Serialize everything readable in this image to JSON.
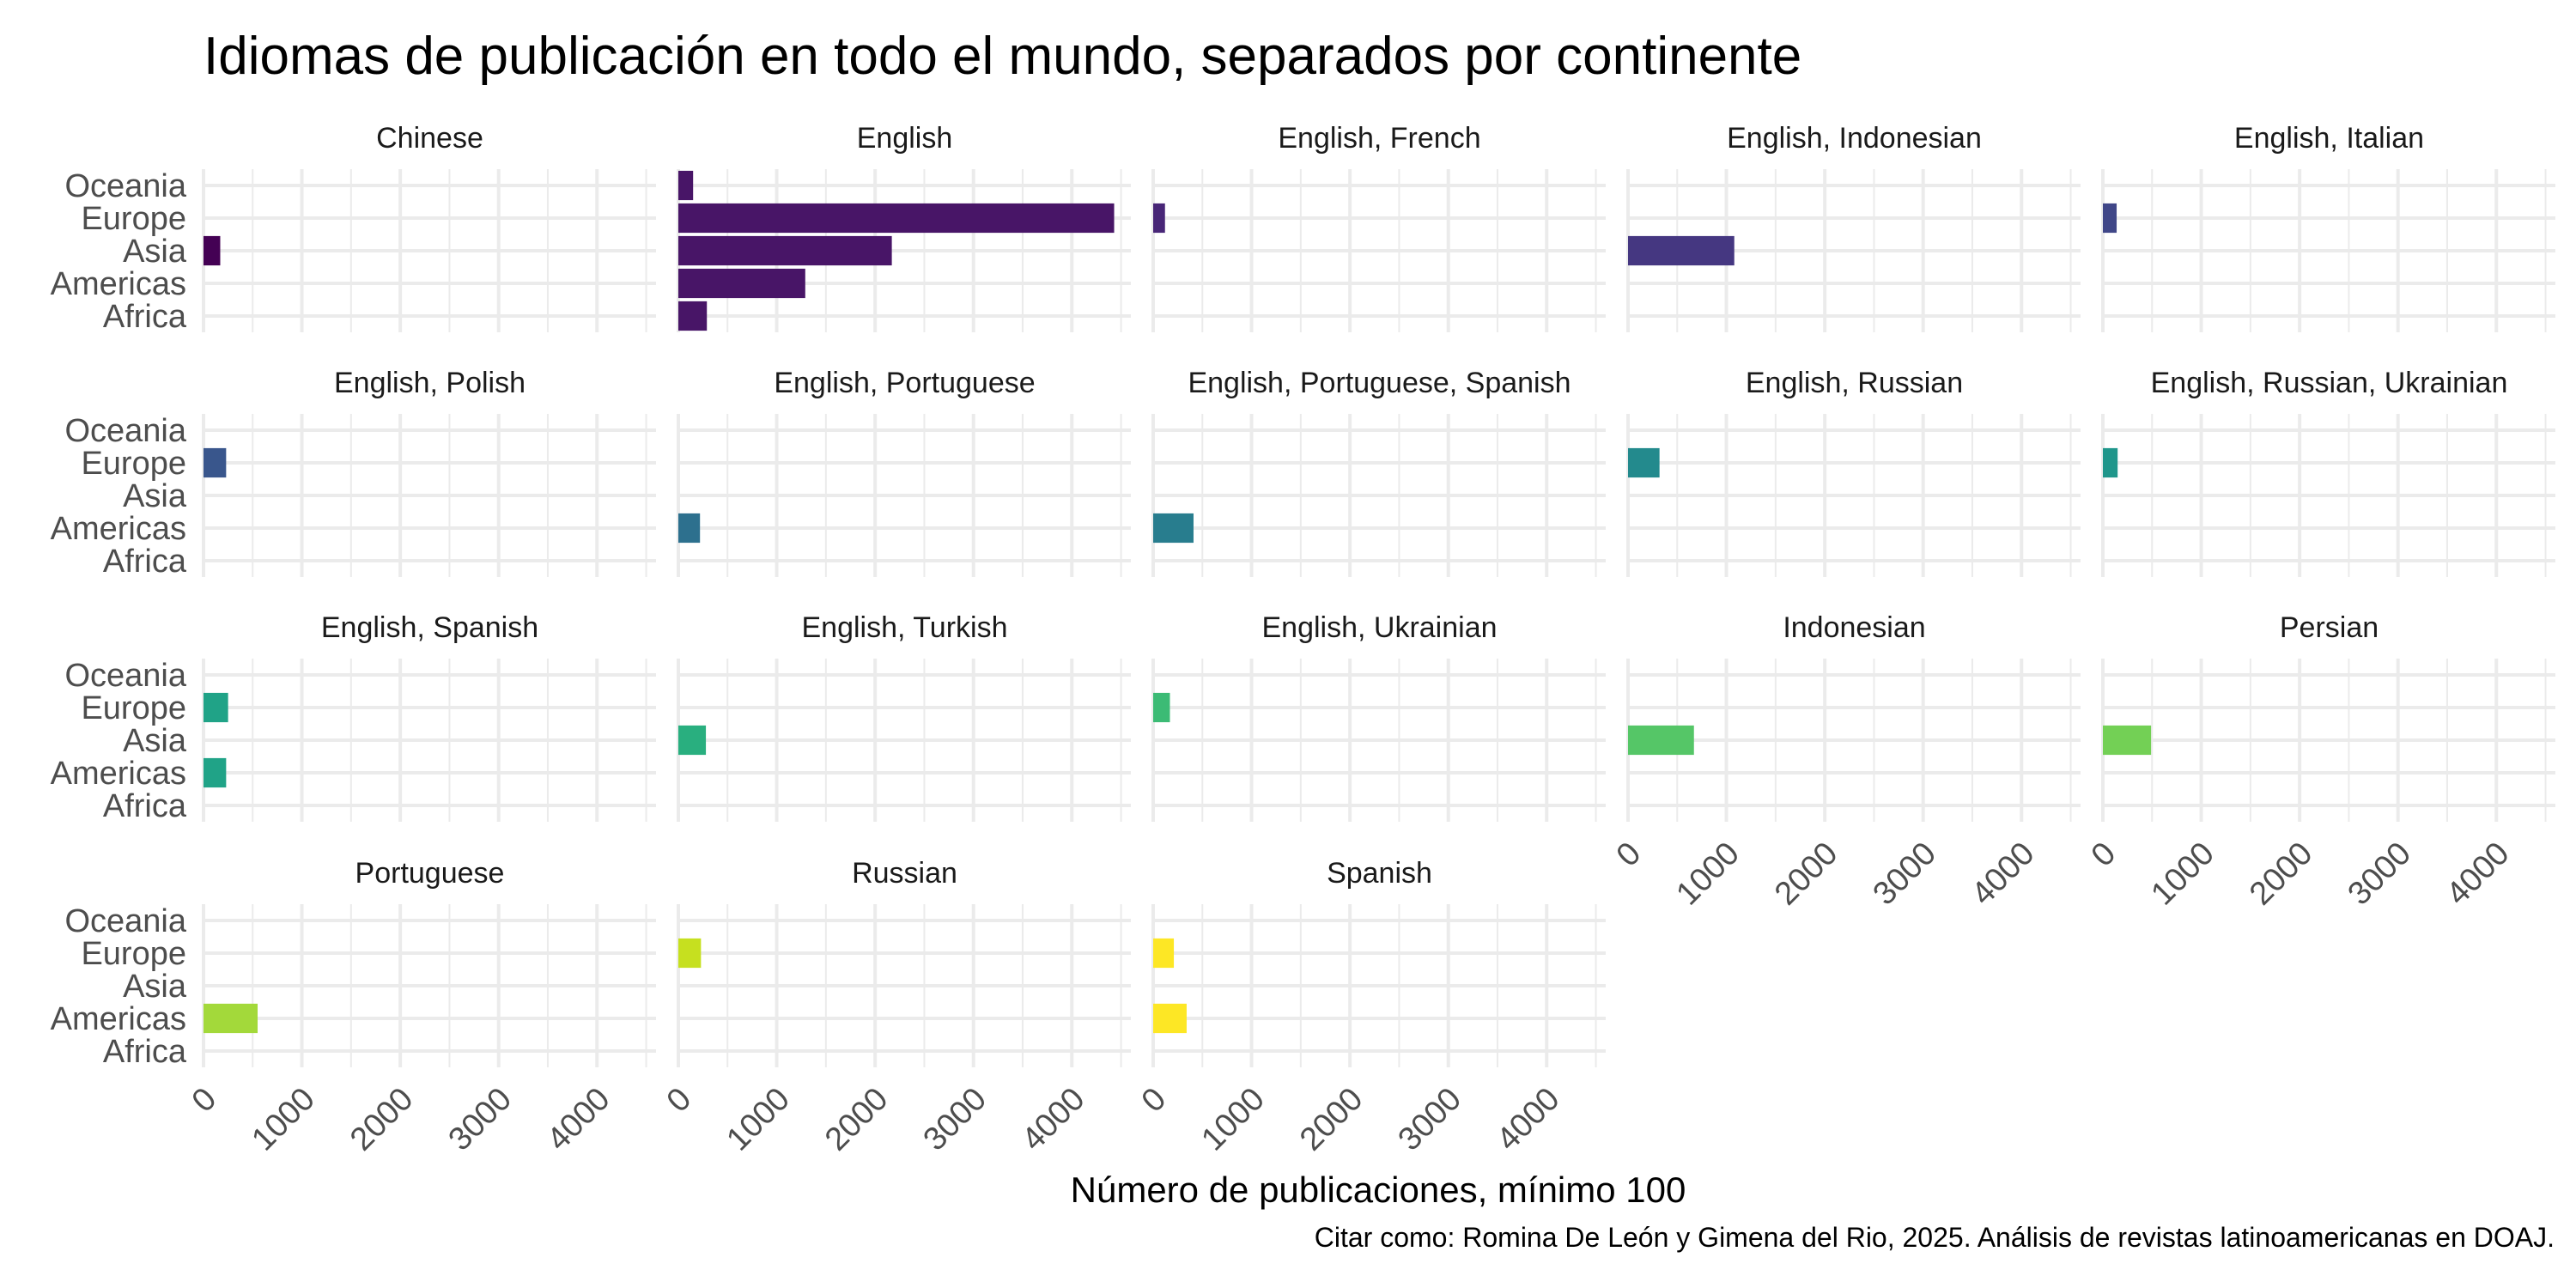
{
  "chart_data": {
    "type": "bar",
    "orientation": "horizontal",
    "title": "Idiomas de publicación en todo el mundo, separados por continente",
    "xlabel": "Número de publicaciones, mínimo 100",
    "ylabel": "",
    "caption": "Citar como: Romina De León y Gimena del Rio, 2025. Análisis de revistas latinoamericanas en DOAJ.",
    "categories": [
      "Africa",
      "Americas",
      "Asia",
      "Europe",
      "Oceania"
    ],
    "x_ticks": [
      "0",
      "1000",
      "2000",
      "3000",
      "4000"
    ],
    "xlim": [
      0,
      4600
    ],
    "grid": true,
    "facets": [
      {
        "name": "Chinese",
        "color": "#440154",
        "values": {
          "Asia": 170
        }
      },
      {
        "name": "English",
        "color": "#481567",
        "values": {
          "Africa": 290,
          "Americas": 1290,
          "Asia": 2170,
          "Europe": 4430,
          "Oceania": 150
        }
      },
      {
        "name": "English, French",
        "color": "#482677",
        "values": {
          "Europe": 120
        }
      },
      {
        "name": "English, Indonesian",
        "color": "#453781",
        "values": {
          "Asia": 1080
        }
      },
      {
        "name": "English, Italian",
        "color": "#404788",
        "values": {
          "Europe": 140
        }
      },
      {
        "name": "English, Polish",
        "color": "#39568C",
        "values": {
          "Europe": 230
        }
      },
      {
        "name": "English, Portuguese",
        "color": "#2D708E",
        "values": {
          "Americas": 220
        }
      },
      {
        "name": "English, Portuguese, Spanish",
        "color": "#287D8E",
        "values": {
          "Americas": 410
        }
      },
      {
        "name": "English, Russian",
        "color": "#238A8D",
        "values": {
          "Europe": 320
        }
      },
      {
        "name": "English, Russian, Ukrainian",
        "color": "#1F968B",
        "values": {
          "Europe": 150
        }
      },
      {
        "name": "English, Spanish",
        "color": "#20A387",
        "values": {
          "Europe": 250,
          "Americas": 230
        }
      },
      {
        "name": "English, Turkish",
        "color": "#29AF7F",
        "values": {
          "Asia": 280
        }
      },
      {
        "name": "English, Ukrainian",
        "color": "#3CBB75",
        "values": {
          "Europe": 170
        }
      },
      {
        "name": "Indonesian",
        "color": "#55C667",
        "values": {
          "Asia": 670
        }
      },
      {
        "name": "Persian",
        "color": "#73D055",
        "values": {
          "Asia": 490
        }
      },
      {
        "name": "Portuguese",
        "color": "#A3D93A",
        "values": {
          "Americas": 550
        }
      },
      {
        "name": "Russian",
        "color": "#C6E01F",
        "values": {
          "Europe": 230
        }
      },
      {
        "name": "Spanish",
        "color": "#FDE725",
        "values": {
          "Europe": 210,
          "Americas": 340
        }
      }
    ]
  }
}
